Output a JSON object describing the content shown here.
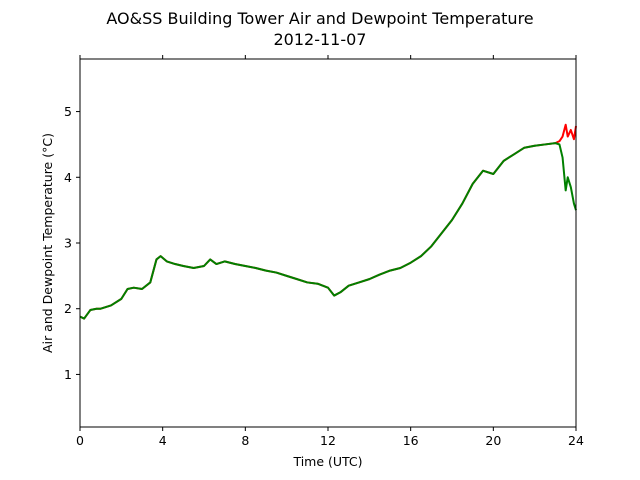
{
  "chart_data": {
    "type": "line",
    "title": "AO&SS Building Tower Air and Dewpoint Temperature",
    "subtitle": "2012-11-07",
    "xlabel": "Time (UTC)",
    "ylabel": "Air and Dewpoint Temperature (°C)",
    "xlim": [
      0,
      24
    ],
    "ylim": [
      0.2,
      5.8
    ],
    "xticks": [
      0,
      4,
      8,
      12,
      16,
      20,
      24
    ],
    "yticks": [
      1,
      2,
      3,
      4,
      5
    ],
    "grid": false,
    "legend": "none",
    "series": [
      {
        "color": "#ff0000",
        "x": [
          0,
          0.2,
          0.5,
          0.8,
          1.0,
          1.5,
          2.0,
          2.3,
          2.6,
          3.0,
          3.4,
          3.7,
          3.9,
          4.2,
          4.6,
          5.0,
          5.5,
          6.0,
          6.3,
          6.6,
          7.0,
          7.5,
          8.0,
          8.5,
          9.0,
          9.5,
          10.0,
          10.5,
          11.0,
          11.5,
          12.0,
          12.3,
          12.6,
          13.0,
          13.5,
          14.0,
          14.5,
          15.0,
          15.5,
          16.0,
          16.5,
          17.0,
          17.5,
          18.0,
          18.5,
          19.0,
          19.5,
          20.0,
          20.5,
          21.0,
          21.5,
          22.0,
          22.5,
          23.0,
          23.2,
          23.35,
          23.5,
          23.6,
          23.75,
          23.9,
          24.0
        ],
        "y": [
          1.88,
          1.85,
          1.98,
          2.0,
          2.0,
          2.05,
          2.15,
          2.3,
          2.32,
          2.3,
          2.4,
          2.75,
          2.8,
          2.72,
          2.68,
          2.65,
          2.62,
          2.65,
          2.75,
          2.68,
          2.72,
          2.68,
          2.65,
          2.62,
          2.58,
          2.55,
          2.5,
          2.45,
          2.4,
          2.38,
          2.32,
          2.2,
          2.25,
          2.35,
          2.4,
          2.45,
          2.52,
          2.58,
          2.62,
          2.7,
          2.8,
          2.95,
          3.15,
          3.35,
          3.6,
          3.9,
          4.1,
          4.05,
          4.25,
          4.35,
          4.45,
          4.48,
          4.5,
          4.52,
          4.55,
          4.62,
          4.8,
          4.62,
          4.72,
          4.58,
          4.78
        ]
      },
      {
        "color": "#008000",
        "x": [
          0,
          0.2,
          0.5,
          0.8,
          1.0,
          1.5,
          2.0,
          2.3,
          2.6,
          3.0,
          3.4,
          3.7,
          3.9,
          4.2,
          4.6,
          5.0,
          5.5,
          6.0,
          6.3,
          6.6,
          7.0,
          7.5,
          8.0,
          8.5,
          9.0,
          9.5,
          10.0,
          10.5,
          11.0,
          11.5,
          12.0,
          12.3,
          12.6,
          13.0,
          13.5,
          14.0,
          14.5,
          15.0,
          15.5,
          16.0,
          16.5,
          17.0,
          17.5,
          18.0,
          18.5,
          19.0,
          19.5,
          20.0,
          20.5,
          21.0,
          21.5,
          22.0,
          22.5,
          23.0,
          23.2,
          23.35,
          23.5,
          23.6,
          23.75,
          23.9,
          24.0
        ],
        "y": [
          1.88,
          1.85,
          1.98,
          2.0,
          2.0,
          2.05,
          2.15,
          2.3,
          2.32,
          2.3,
          2.4,
          2.75,
          2.8,
          2.72,
          2.68,
          2.65,
          2.62,
          2.65,
          2.75,
          2.68,
          2.72,
          2.68,
          2.65,
          2.62,
          2.58,
          2.55,
          2.5,
          2.45,
          2.4,
          2.38,
          2.32,
          2.2,
          2.25,
          2.35,
          2.4,
          2.45,
          2.52,
          2.58,
          2.62,
          2.7,
          2.8,
          2.95,
          3.15,
          3.35,
          3.6,
          3.9,
          4.1,
          4.05,
          4.25,
          4.35,
          4.45,
          4.48,
          4.5,
          4.52,
          4.5,
          4.3,
          3.8,
          4.0,
          3.85,
          3.6,
          3.5
        ]
      }
    ]
  }
}
